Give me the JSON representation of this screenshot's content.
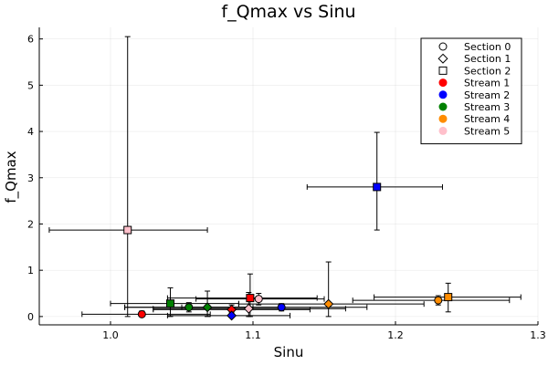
{
  "chart_data": {
    "type": "scatter",
    "title": "f_Qmax vs Sinu",
    "xlabel": "Sinu",
    "ylabel": "f_Qmax",
    "xlim": [
      0.95,
      1.3
    ],
    "ylim": [
      -0.18,
      6.25
    ],
    "xticks": [
      1.0,
      1.1,
      1.2,
      1.3
    ],
    "xtick_labels": [
      "1.0",
      "1.1",
      "1.2",
      "1.3"
    ],
    "yticks": [
      0,
      1,
      2,
      3,
      4,
      5,
      6
    ],
    "ytick_labels": [
      "0",
      "1",
      "2",
      "3",
      "4",
      "5",
      "6"
    ],
    "grid": true,
    "legend_position": "top-right",
    "legend": [
      {
        "label": "Section 0",
        "kind": "shape",
        "shape": "circle"
      },
      {
        "label": "Section 1",
        "kind": "shape",
        "shape": "diamond"
      },
      {
        "label": "Section 2",
        "kind": "shape",
        "shape": "square"
      },
      {
        "label": "Stream 1",
        "kind": "color",
        "color": "#ff0000"
      },
      {
        "label": "Stream 2",
        "kind": "color",
        "color": "#0000ff"
      },
      {
        "label": "Stream 3",
        "kind": "color",
        "color": "#008000"
      },
      {
        "label": "Stream 4",
        "kind": "color",
        "color": "#ff8c00"
      },
      {
        "label": "Stream 5",
        "kind": "color",
        "color": "#ffc0cb"
      }
    ],
    "points": [
      {
        "section": 0,
        "stream": 1,
        "shape": "circle",
        "color": "#ff0000",
        "x": 1.022,
        "y": 0.05,
        "xerr": [
          0.98,
          1.07
        ],
        "yerr": [
          0.0,
          0.12
        ]
      },
      {
        "section": 0,
        "stream": 2,
        "shape": "circle",
        "color": "#0000ff",
        "x": 1.12,
        "y": 0.2,
        "xerr": [
          1.05,
          1.18
        ],
        "yerr": [
          0.12,
          0.28
        ]
      },
      {
        "section": 0,
        "stream": 3,
        "shape": "circle",
        "color": "#008000",
        "x": 1.055,
        "y": 0.2,
        "xerr": [
          1.01,
          1.1
        ],
        "yerr": [
          0.1,
          0.3
        ]
      },
      {
        "section": 0,
        "stream": 4,
        "shape": "circle",
        "color": "#ff8c00",
        "x": 1.23,
        "y": 0.35,
        "xerr": [
          1.17,
          1.28
        ],
        "yerr": [
          0.25,
          0.45
        ]
      },
      {
        "section": 0,
        "stream": 5,
        "shape": "circle",
        "color": "#ffc0cb",
        "x": 1.104,
        "y": 0.38,
        "xerr": [
          1.06,
          1.15
        ],
        "yerr": [
          0.25,
          0.5
        ]
      },
      {
        "section": 1,
        "stream": 1,
        "shape": "diamond",
        "color": "#ff0000",
        "x": 1.085,
        "y": 0.15,
        "xerr": [
          1.03,
          1.14
        ],
        "yerr": [
          0.05,
          0.25
        ]
      },
      {
        "section": 1,
        "stream": 2,
        "shape": "diamond",
        "color": "#0000ff",
        "x": 1.085,
        "y": 0.02,
        "xerr": [
          1.04,
          1.126
        ],
        "yerr": [
          0.0,
          0.08
        ]
      },
      {
        "section": 1,
        "stream": 3,
        "shape": "diamond",
        "color": "#008000",
        "x": 1.068,
        "y": 0.2,
        "xerr": [
          1.01,
          1.12
        ],
        "yerr": [
          0.0,
          0.55
        ]
      },
      {
        "section": 1,
        "stream": 4,
        "shape": "diamond",
        "color": "#ff8c00",
        "x": 1.153,
        "y": 0.27,
        "xerr": [
          1.09,
          1.22
        ],
        "yerr": [
          0.0,
          1.18
        ]
      },
      {
        "section": 1,
        "stream": 5,
        "shape": "diamond",
        "color": "#ffc0cb",
        "x": 1.097,
        "y": 0.17,
        "xerr": [
          1.03,
          1.165
        ],
        "yerr": [
          0.0,
          0.52
        ]
      },
      {
        "section": 2,
        "stream": 1,
        "shape": "square",
        "color": "#ff0000",
        "x": 1.098,
        "y": 0.4,
        "xerr": [
          1.04,
          1.145
        ],
        "yerr": [
          0.0,
          0.92
        ]
      },
      {
        "section": 2,
        "stream": 2,
        "shape": "square",
        "color": "#0000ff",
        "x": 1.187,
        "y": 2.8,
        "xerr": [
          1.138,
          1.233
        ],
        "yerr": [
          1.87,
          3.98
        ]
      },
      {
        "section": 2,
        "stream": 3,
        "shape": "square",
        "color": "#008000",
        "x": 1.042,
        "y": 0.28,
        "xerr": [
          1.0,
          1.09
        ],
        "yerr": [
          0.0,
          0.62
        ]
      },
      {
        "section": 2,
        "stream": 4,
        "shape": "square",
        "color": "#ff8c00",
        "x": 1.237,
        "y": 0.42,
        "xerr": [
          1.185,
          1.288
        ],
        "yerr": [
          0.1,
          0.72
        ]
      },
      {
        "section": 2,
        "stream": 5,
        "shape": "square",
        "color": "#ffc0cb",
        "x": 1.012,
        "y": 1.87,
        "xerr": [
          0.957,
          1.068
        ],
        "yerr": [
          0.0,
          6.05
        ]
      }
    ]
  }
}
